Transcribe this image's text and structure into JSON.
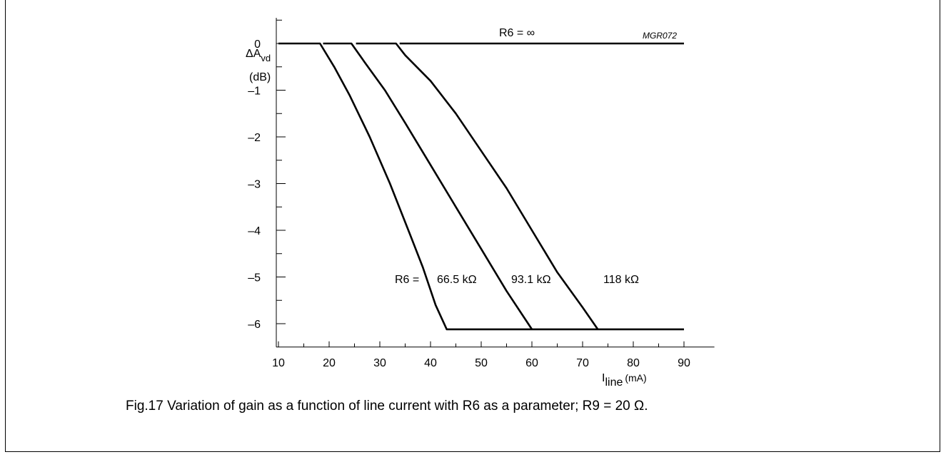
{
  "chart_data": {
    "type": "line",
    "code": "MGR072",
    "ylabel": {
      "main": "ΔA",
      "sub": "vd",
      "unit": "(dB)"
    },
    "xlabel": {
      "main": "I",
      "sub": "line",
      "unit": "(mA)"
    },
    "xlim": [
      10,
      96
    ],
    "ylim": [
      -6.5,
      0.55
    ],
    "x_ticks": [
      10,
      20,
      30,
      40,
      50,
      60,
      70,
      80,
      90
    ],
    "y_ticks": [
      0,
      -1,
      -2,
      -3,
      -4,
      -5,
      -6
    ],
    "y_tick_labels": [
      "0",
      "–1",
      "–2",
      "–3",
      "–4",
      "–5",
      "–6"
    ],
    "series_prefix": "R6 =",
    "series": [
      {
        "name": "∞",
        "label": "R6 = ∞",
        "points": [
          [
            33.9,
            0
          ],
          [
            90,
            0
          ]
        ]
      },
      {
        "name": "66.5 kΩ",
        "label": "66.5 kΩ",
        "points": [
          [
            10,
            0
          ],
          [
            18.2,
            0
          ],
          [
            21,
            -0.5
          ],
          [
            24,
            -1.1
          ],
          [
            28,
            -2.0
          ],
          [
            32,
            -3.0
          ],
          [
            36,
            -4.1
          ],
          [
            38.5,
            -4.8
          ],
          [
            41,
            -5.6
          ],
          [
            43.2,
            -6.12
          ],
          [
            90,
            -6.12
          ]
        ]
      },
      {
        "name": "93.1 kΩ",
        "label": "93.1 kΩ",
        "points": [
          [
            18.8,
            0
          ],
          [
            24.4,
            0
          ],
          [
            27,
            -0.4
          ],
          [
            31,
            -1.0
          ],
          [
            35,
            -1.7
          ],
          [
            40,
            -2.6
          ],
          [
            45,
            -3.5
          ],
          [
            50,
            -4.4
          ],
          [
            55,
            -5.3
          ],
          [
            60,
            -6.12
          ]
        ]
      },
      {
        "name": "118 kΩ",
        "label": "118 kΩ",
        "points": [
          [
            25.3,
            0
          ],
          [
            33.2,
            0
          ],
          [
            35,
            -0.25
          ],
          [
            40,
            -0.8
          ],
          [
            45,
            -1.5
          ],
          [
            50,
            -2.3
          ],
          [
            55,
            -3.1
          ],
          [
            60,
            -4.0
          ],
          [
            65,
            -4.9
          ],
          [
            70,
            -5.65
          ],
          [
            73,
            -6.12
          ]
        ]
      }
    ],
    "grid": false,
    "legend": "none"
  },
  "caption": "Fig.17  Variation of gain as a function of line current with R6 as a parameter; R9 = 20 Ω."
}
